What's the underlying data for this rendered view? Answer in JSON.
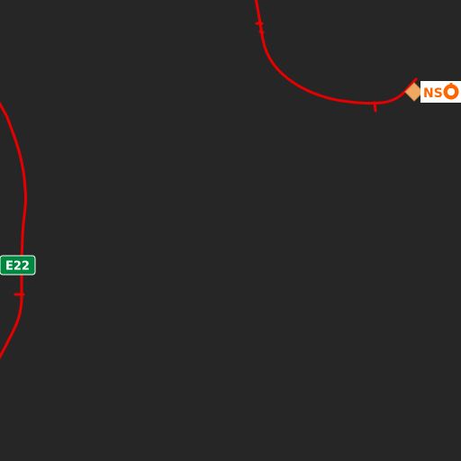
{
  "map": {
    "theme": "dark",
    "background_color": "#262626",
    "road_color": "#e60000",
    "route_shield": {
      "label": "E22",
      "color": "#00873f",
      "text_color": "#ffffff"
    },
    "poi": {
      "label": "NS",
      "icon": "ns-logo-icon",
      "color": "#ff6600",
      "marker_color": "#f0a860"
    }
  }
}
